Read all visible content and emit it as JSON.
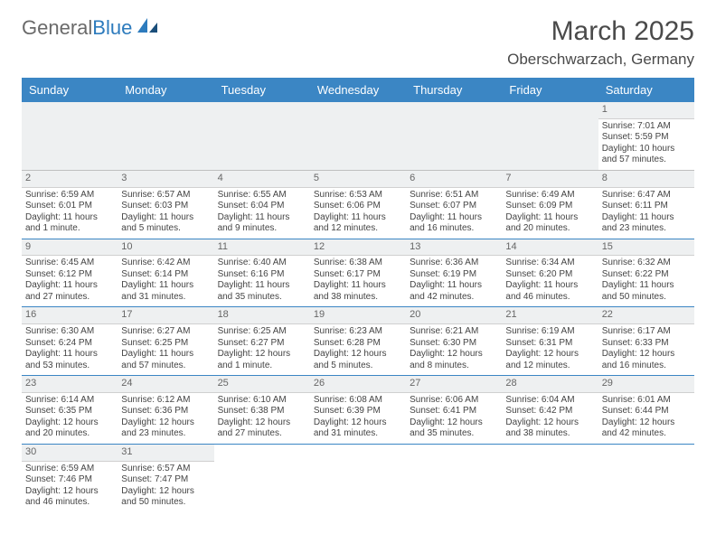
{
  "brand": {
    "part1": "General",
    "part2": "Blue"
  },
  "title": "March 2025",
  "location": "Oberschwarzach, Germany",
  "colors": {
    "header_bg": "#3b86c4",
    "header_fg": "#ffffff",
    "daynum_bg": "#eef0f1",
    "rule": "#3b86c4"
  },
  "weekdays": [
    "Sunday",
    "Monday",
    "Tuesday",
    "Wednesday",
    "Thursday",
    "Friday",
    "Saturday"
  ],
  "weeks": [
    [
      null,
      null,
      null,
      null,
      null,
      null,
      {
        "n": "1",
        "sr": "Sunrise: 7:01 AM",
        "ss": "Sunset: 5:59 PM",
        "dl": "Daylight: 10 hours and 57 minutes."
      }
    ],
    [
      {
        "n": "2",
        "sr": "Sunrise: 6:59 AM",
        "ss": "Sunset: 6:01 PM",
        "dl": "Daylight: 11 hours and 1 minute."
      },
      {
        "n": "3",
        "sr": "Sunrise: 6:57 AM",
        "ss": "Sunset: 6:03 PM",
        "dl": "Daylight: 11 hours and 5 minutes."
      },
      {
        "n": "4",
        "sr": "Sunrise: 6:55 AM",
        "ss": "Sunset: 6:04 PM",
        "dl": "Daylight: 11 hours and 9 minutes."
      },
      {
        "n": "5",
        "sr": "Sunrise: 6:53 AM",
        "ss": "Sunset: 6:06 PM",
        "dl": "Daylight: 11 hours and 12 minutes."
      },
      {
        "n": "6",
        "sr": "Sunrise: 6:51 AM",
        "ss": "Sunset: 6:07 PM",
        "dl": "Daylight: 11 hours and 16 minutes."
      },
      {
        "n": "7",
        "sr": "Sunrise: 6:49 AM",
        "ss": "Sunset: 6:09 PM",
        "dl": "Daylight: 11 hours and 20 minutes."
      },
      {
        "n": "8",
        "sr": "Sunrise: 6:47 AM",
        "ss": "Sunset: 6:11 PM",
        "dl": "Daylight: 11 hours and 23 minutes."
      }
    ],
    [
      {
        "n": "9",
        "sr": "Sunrise: 6:45 AM",
        "ss": "Sunset: 6:12 PM",
        "dl": "Daylight: 11 hours and 27 minutes."
      },
      {
        "n": "10",
        "sr": "Sunrise: 6:42 AM",
        "ss": "Sunset: 6:14 PM",
        "dl": "Daylight: 11 hours and 31 minutes."
      },
      {
        "n": "11",
        "sr": "Sunrise: 6:40 AM",
        "ss": "Sunset: 6:16 PM",
        "dl": "Daylight: 11 hours and 35 minutes."
      },
      {
        "n": "12",
        "sr": "Sunrise: 6:38 AM",
        "ss": "Sunset: 6:17 PM",
        "dl": "Daylight: 11 hours and 38 minutes."
      },
      {
        "n": "13",
        "sr": "Sunrise: 6:36 AM",
        "ss": "Sunset: 6:19 PM",
        "dl": "Daylight: 11 hours and 42 minutes."
      },
      {
        "n": "14",
        "sr": "Sunrise: 6:34 AM",
        "ss": "Sunset: 6:20 PM",
        "dl": "Daylight: 11 hours and 46 minutes."
      },
      {
        "n": "15",
        "sr": "Sunrise: 6:32 AM",
        "ss": "Sunset: 6:22 PM",
        "dl": "Daylight: 11 hours and 50 minutes."
      }
    ],
    [
      {
        "n": "16",
        "sr": "Sunrise: 6:30 AM",
        "ss": "Sunset: 6:24 PM",
        "dl": "Daylight: 11 hours and 53 minutes."
      },
      {
        "n": "17",
        "sr": "Sunrise: 6:27 AM",
        "ss": "Sunset: 6:25 PM",
        "dl": "Daylight: 11 hours and 57 minutes."
      },
      {
        "n": "18",
        "sr": "Sunrise: 6:25 AM",
        "ss": "Sunset: 6:27 PM",
        "dl": "Daylight: 12 hours and 1 minute."
      },
      {
        "n": "19",
        "sr": "Sunrise: 6:23 AM",
        "ss": "Sunset: 6:28 PM",
        "dl": "Daylight: 12 hours and 5 minutes."
      },
      {
        "n": "20",
        "sr": "Sunrise: 6:21 AM",
        "ss": "Sunset: 6:30 PM",
        "dl": "Daylight: 12 hours and 8 minutes."
      },
      {
        "n": "21",
        "sr": "Sunrise: 6:19 AM",
        "ss": "Sunset: 6:31 PM",
        "dl": "Daylight: 12 hours and 12 minutes."
      },
      {
        "n": "22",
        "sr": "Sunrise: 6:17 AM",
        "ss": "Sunset: 6:33 PM",
        "dl": "Daylight: 12 hours and 16 minutes."
      }
    ],
    [
      {
        "n": "23",
        "sr": "Sunrise: 6:14 AM",
        "ss": "Sunset: 6:35 PM",
        "dl": "Daylight: 12 hours and 20 minutes."
      },
      {
        "n": "24",
        "sr": "Sunrise: 6:12 AM",
        "ss": "Sunset: 6:36 PM",
        "dl": "Daylight: 12 hours and 23 minutes."
      },
      {
        "n": "25",
        "sr": "Sunrise: 6:10 AM",
        "ss": "Sunset: 6:38 PM",
        "dl": "Daylight: 12 hours and 27 minutes."
      },
      {
        "n": "26",
        "sr": "Sunrise: 6:08 AM",
        "ss": "Sunset: 6:39 PM",
        "dl": "Daylight: 12 hours and 31 minutes."
      },
      {
        "n": "27",
        "sr": "Sunrise: 6:06 AM",
        "ss": "Sunset: 6:41 PM",
        "dl": "Daylight: 12 hours and 35 minutes."
      },
      {
        "n": "28",
        "sr": "Sunrise: 6:04 AM",
        "ss": "Sunset: 6:42 PM",
        "dl": "Daylight: 12 hours and 38 minutes."
      },
      {
        "n": "29",
        "sr": "Sunrise: 6:01 AM",
        "ss": "Sunset: 6:44 PM",
        "dl": "Daylight: 12 hours and 42 minutes."
      }
    ],
    [
      {
        "n": "30",
        "sr": "Sunrise: 6:59 AM",
        "ss": "Sunset: 7:46 PM",
        "dl": "Daylight: 12 hours and 46 minutes."
      },
      {
        "n": "31",
        "sr": "Sunrise: 6:57 AM",
        "ss": "Sunset: 7:47 PM",
        "dl": "Daylight: 12 hours and 50 minutes."
      },
      null,
      null,
      null,
      null,
      null
    ]
  ]
}
